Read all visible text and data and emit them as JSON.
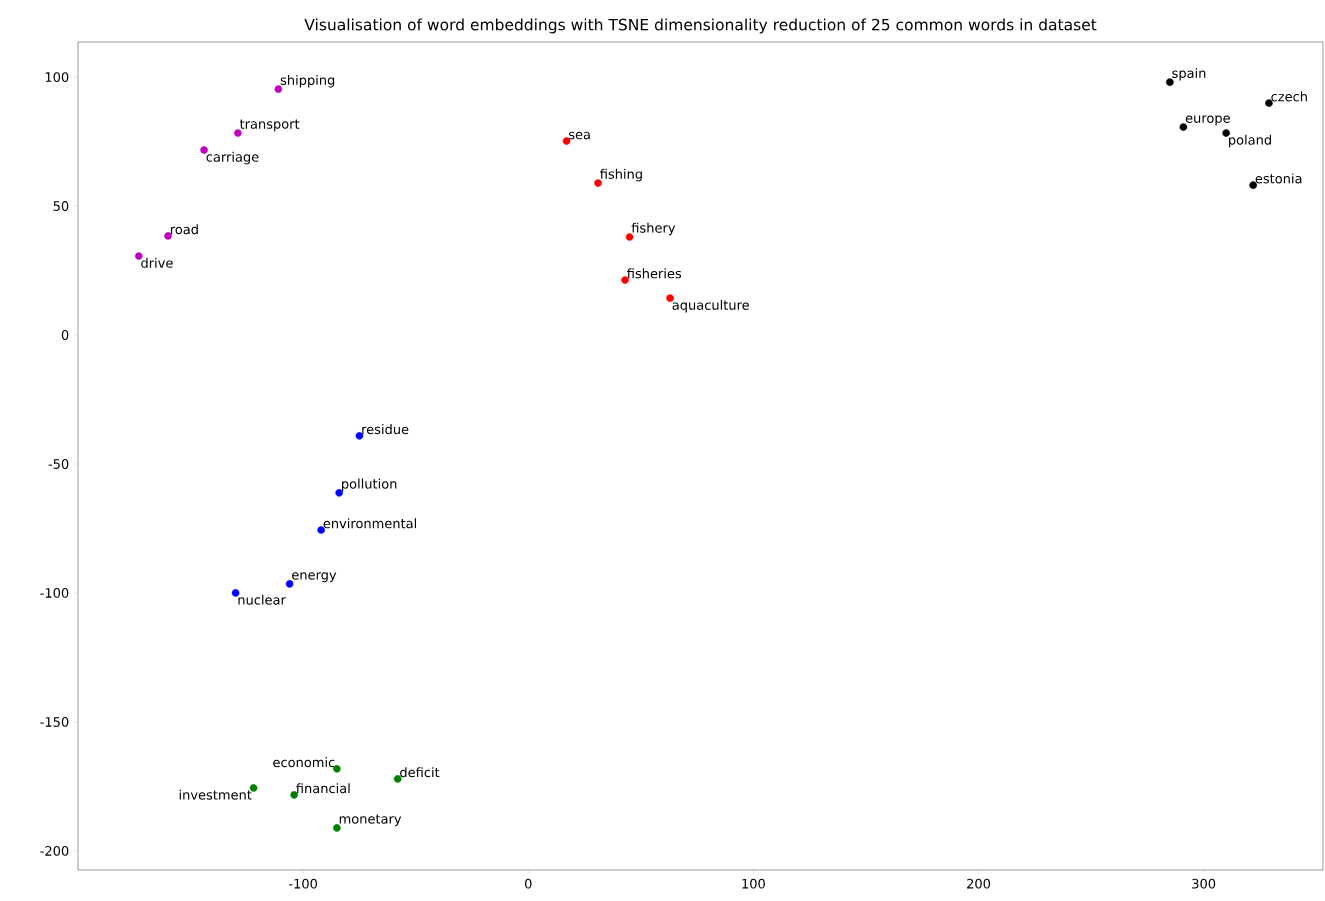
{
  "chart_data": {
    "type": "scatter",
    "title": "Visualisation of word embeddings with TSNE dimensionality reduction of 25 common words in dataset",
    "marker": "circle",
    "grid": false,
    "xlim": [
      -200,
      353
    ],
    "ylim": [
      -207.4,
      113.6
    ],
    "xticks": [
      -100,
      0,
      100,
      200,
      300
    ],
    "yticks": [
      -200,
      -150,
      -100,
      -50,
      0,
      50,
      100
    ],
    "series": [
      {
        "color": "#bf00bf",
        "x": [
          -111,
          -129,
          -144,
          -160,
          -173
        ],
        "values": [
          95.3,
          78.3,
          71.7,
          38.4,
          30.6
        ]
      },
      {
        "color": "#ff0000",
        "x": [
          17,
          31,
          45,
          43,
          63
        ],
        "values": [
          75.2,
          58.9,
          38,
          21.3,
          14.3
        ]
      },
      {
        "color": "#000000",
        "x": [
          285,
          329,
          291,
          310,
          322
        ],
        "values": [
          98,
          89.9,
          80.6,
          78.3,
          58.1
        ]
      },
      {
        "color": "#0000ff",
        "x": [
          -75,
          -84,
          -92,
          -106,
          -130
        ],
        "values": [
          -39.1,
          -61.2,
          -75.6,
          -96.5,
          -100
        ]
      },
      {
        "color": "#008000",
        "x": [
          -85,
          -58,
          -104,
          -122,
          -85
        ],
        "values": [
          -168.2,
          -172.1,
          -178.3,
          -175.6,
          -191.1
        ]
      }
    ],
    "annotations": [
      {
        "text": "shipping",
        "x": -111,
        "y": 95.3
      },
      {
        "text": "transport",
        "x": -129,
        "y": 78.3
      },
      {
        "text": "carriage",
        "x": -144,
        "y": 71.7
      },
      {
        "text": "road",
        "x": -160,
        "y": 38.4
      },
      {
        "text": "drive",
        "x": -173,
        "y": 30.6
      },
      {
        "text": "sea",
        "x": 17,
        "y": 75.2
      },
      {
        "text": "fishing",
        "x": 31,
        "y": 58.9
      },
      {
        "text": "fishery",
        "x": 45,
        "y": 38
      },
      {
        "text": "fisheries",
        "x": 43,
        "y": 21.3
      },
      {
        "text": "aquaculture",
        "x": 63,
        "y": 14.3
      },
      {
        "text": "spain",
        "x": 285,
        "y": 98
      },
      {
        "text": "czech",
        "x": 329,
        "y": 89.9
      },
      {
        "text": "europe",
        "x": 291,
        "y": 80.6
      },
      {
        "text": "poland",
        "x": 310,
        "y": 78.3
      },
      {
        "text": "estonia",
        "x": 322,
        "y": 58.1
      },
      {
        "text": "residue",
        "x": -75,
        "y": -39.1
      },
      {
        "text": "pollution",
        "x": -84,
        "y": -61.2
      },
      {
        "text": "environmental",
        "x": -92,
        "y": -75.6
      },
      {
        "text": "energy",
        "x": -106,
        "y": -96.5
      },
      {
        "text": "nuclear",
        "x": -130,
        "y": -100
      },
      {
        "text": "economic",
        "x": -85,
        "y": -168.2
      },
      {
        "text": "deficit",
        "x": -58,
        "y": -172.1
      },
      {
        "text": "financial",
        "x": -104,
        "y": -178.3
      },
      {
        "text": "investment",
        "x": -122,
        "y": -175.6
      },
      {
        "text": "monetary",
        "x": -85,
        "y": -191.1
      }
    ]
  }
}
